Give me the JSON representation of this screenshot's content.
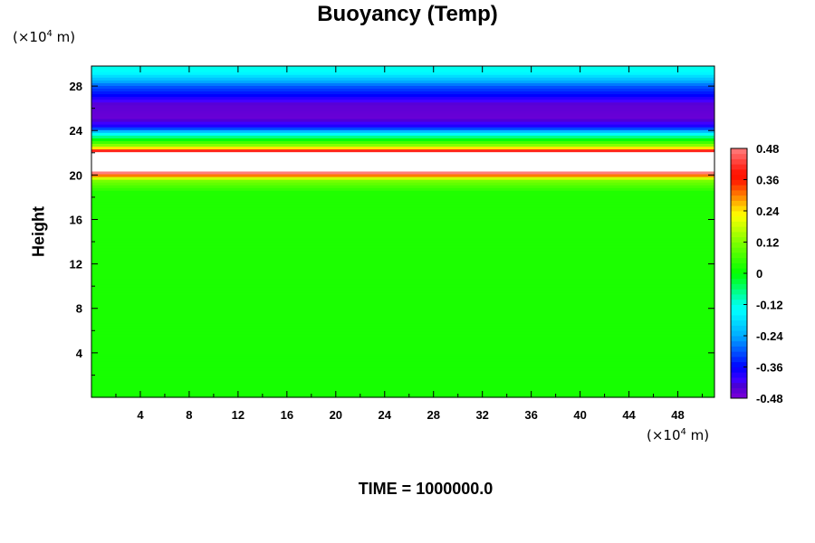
{
  "chart_data": {
    "type": "heatmap",
    "title": "Buoyancy (Temp)",
    "ylabel": "Height",
    "xlabel": "",
    "x_unit_prefix": "(×10",
    "x_unit_exp": "4",
    "x_unit_suffix": " m)",
    "y_unit_prefix": "(×10",
    "y_unit_exp": "4",
    "y_unit_suffix": " m)",
    "xlim": [
      0,
      51
    ],
    "ylim": [
      0,
      29.8
    ],
    "x_ticks": [
      "4",
      "8",
      "12",
      "16",
      "20",
      "24",
      "28",
      "32",
      "36",
      "40",
      "44",
      "48"
    ],
    "y_ticks": [
      "4",
      "8",
      "12",
      "16",
      "20",
      "24",
      "28"
    ],
    "colorbar": {
      "range": [
        -0.48,
        0.48
      ],
      "step": 0.02,
      "tick_labels": [
        "0.48",
        "0.36",
        "0.24",
        "0.12",
        "0",
        "-0.12",
        "-0.24",
        "-0.36",
        "-0.48"
      ]
    },
    "profile": [
      {
        "height": 0.0,
        "value": 0.02
      },
      {
        "height": 18.5,
        "value": 0.03
      },
      {
        "height": 19.6,
        "value": 0.12
      },
      {
        "height": 20.2,
        "value": 0.4
      },
      {
        "height": 20.3,
        "value": 0.6
      },
      {
        "height": 21.9,
        "value": 0.6
      },
      {
        "height": 22.2,
        "value": 0.42
      },
      {
        "height": 22.6,
        "value": 0.16
      },
      {
        "height": 23.2,
        "value": 0.0
      },
      {
        "height": 23.8,
        "value": -0.16
      },
      {
        "height": 24.4,
        "value": -0.38
      },
      {
        "height": 25.2,
        "value": -0.46
      },
      {
        "height": 26.4,
        "value": -0.45
      },
      {
        "height": 27.2,
        "value": -0.36
      },
      {
        "height": 28.0,
        "value": -0.3
      },
      {
        "height": 28.6,
        "value": -0.22
      },
      {
        "height": 29.2,
        "value": -0.15
      },
      {
        "height": 29.8,
        "value": -0.12
      }
    ]
  },
  "footer": {
    "time_label": "TIME = 1000000.0"
  }
}
